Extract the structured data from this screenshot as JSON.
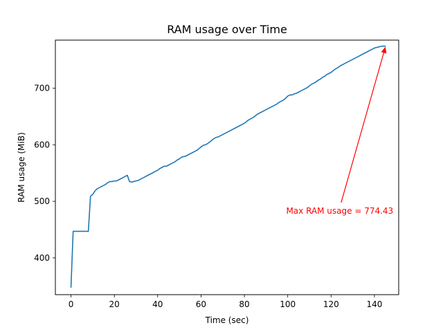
{
  "chart_data": {
    "type": "line",
    "title": "RAM usage over Time",
    "xlabel": "Time (sec)",
    "ylabel": "RAM usage (MiB)",
    "xlim": [
      -7.2,
      151.2
    ],
    "ylim": [
      335,
      785
    ],
    "xticks": [
      0,
      20,
      40,
      60,
      80,
      100,
      120,
      140
    ],
    "yticks": [
      400,
      500,
      600,
      700
    ],
    "grid": false,
    "series": [
      {
        "color": "#1f77b4",
        "x": [
          0,
          1,
          2,
          3,
          4,
          5,
          6,
          7,
          8,
          9,
          10,
          11,
          12,
          13,
          14,
          15,
          16,
          17,
          18,
          19,
          20,
          21,
          22,
          23,
          24,
          25,
          26,
          27,
          28,
          29,
          30,
          31,
          32,
          33,
          34,
          35,
          36,
          37,
          38,
          39,
          40,
          41,
          42,
          43,
          44,
          45,
          46,
          47,
          48,
          49,
          50,
          51,
          52,
          53,
          54,
          55,
          56,
          57,
          58,
          59,
          60,
          61,
          62,
          63,
          64,
          65,
          66,
          67,
          68,
          69,
          70,
          71,
          72,
          73,
          74,
          75,
          76,
          77,
          78,
          79,
          80,
          81,
          82,
          83,
          84,
          85,
          86,
          87,
          88,
          89,
          90,
          91,
          92,
          93,
          94,
          95,
          96,
          97,
          98,
          99,
          100,
          101,
          102,
          103,
          104,
          105,
          106,
          107,
          108,
          109,
          110,
          111,
          112,
          113,
          114,
          115,
          116,
          117,
          118,
          119,
          120,
          121,
          122,
          123,
          124,
          125,
          126,
          127,
          128,
          129,
          130,
          131,
          132,
          133,
          134,
          135,
          136,
          137,
          138,
          139,
          140,
          141,
          142,
          143,
          144,
          145
        ],
        "y": [
          348,
          447,
          447,
          447,
          447,
          447,
          447,
          447,
          447,
          509,
          512,
          518,
          522,
          524,
          526,
          528,
          530,
          533,
          535,
          535,
          536,
          536,
          538,
          540,
          542,
          544,
          546,
          535,
          534,
          535,
          536,
          537,
          539,
          541,
          543,
          545,
          547,
          549,
          551,
          553,
          555,
          558,
          560,
          562,
          562,
          564,
          566,
          568,
          570,
          573,
          575,
          578,
          579,
          580,
          582,
          584,
          586,
          588,
          590,
          593,
          596,
          599,
          600,
          602,
          605,
          608,
          611,
          613,
          614,
          616,
          618,
          620,
          622,
          624,
          626,
          628,
          630,
          632,
          634,
          636,
          638,
          641,
          644,
          646,
          648,
          651,
          654,
          656,
          658,
          660,
          662,
          664,
          666,
          668,
          670,
          672,
          675,
          677,
          679,
          682,
          686,
          688,
          688,
          690,
          691,
          693,
          695,
          697,
          699,
          701,
          704,
          707,
          709,
          711,
          714,
          716,
          719,
          721,
          724,
          726,
          728,
          731,
          734,
          736,
          739,
          741,
          743,
          745,
          747,
          749,
          751,
          753,
          755,
          757,
          759,
          761,
          763,
          765,
          767,
          769,
          771,
          772,
          773,
          774,
          774.43,
          774.43
        ]
      }
    ],
    "annotation": {
      "text": "Max RAM usage = 774.43",
      "color": "#ff0000",
      "text_x": 124,
      "text_y": 483,
      "arrow_to": [
        145,
        774.43
      ]
    }
  }
}
